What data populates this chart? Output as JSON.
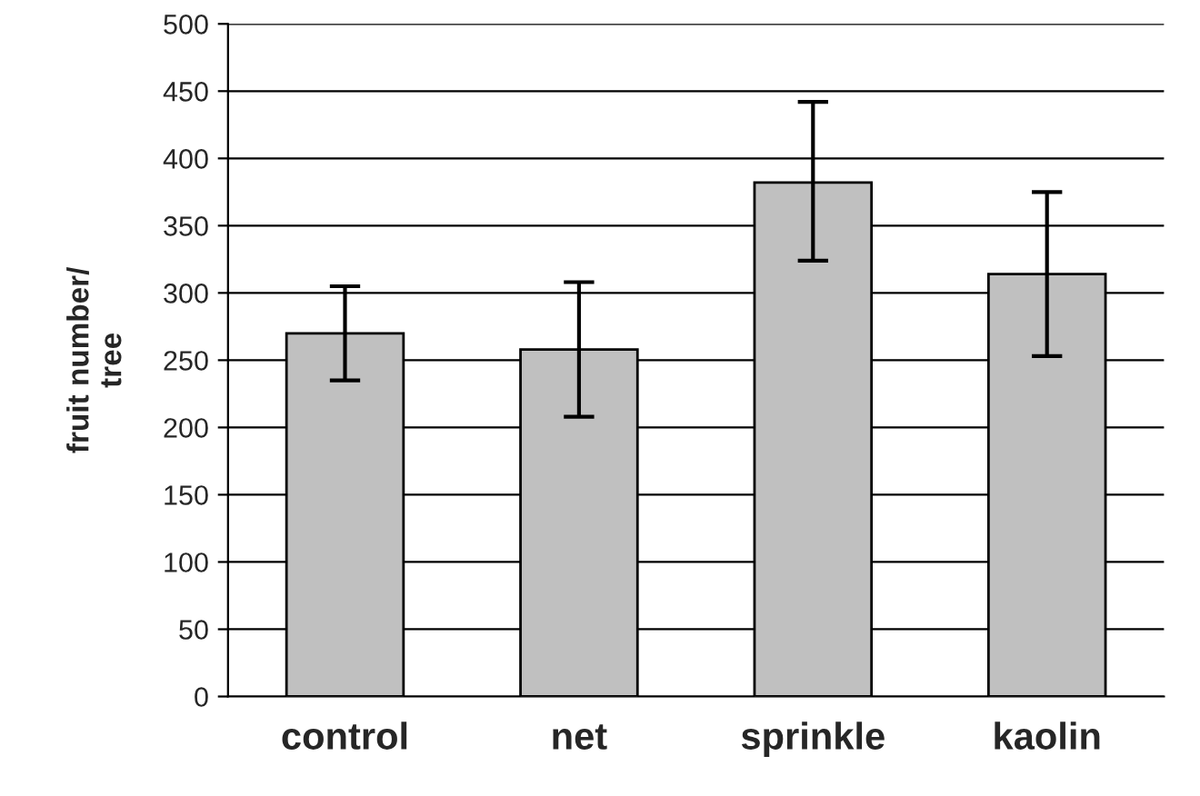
{
  "chart_data": {
    "type": "bar",
    "ylabel": "fruit number/\ntree",
    "categories": [
      "control",
      "net",
      "sprinkle",
      "kaolin"
    ],
    "values": [
      270,
      258,
      382,
      314
    ],
    "errors": [
      [
        235,
        305
      ],
      [
        208,
        308
      ],
      [
        324,
        442
      ],
      [
        253,
        375
      ]
    ],
    "color": "#c0c0c0",
    "ylim": [
      0,
      500
    ],
    "yticks": [
      0,
      50,
      100,
      150,
      200,
      250,
      300,
      350,
      400,
      450,
      500
    ],
    "grid": "y"
  }
}
